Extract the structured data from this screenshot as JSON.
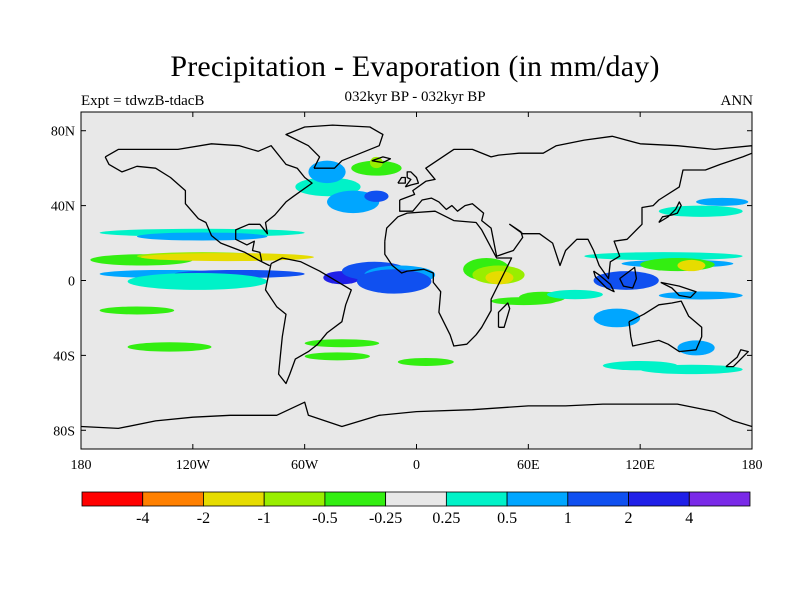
{
  "title": "Precipitation - Evaporation (in mm/day)",
  "subtitle": "032kyr BP - 032kyr BP",
  "left_label": "Expt = tdwzB-tdacB",
  "right_label": "ANN",
  "colors": {
    "ocean_background": "#e8e8e8",
    "coastline": "#000000",
    "negative_strong": "#ff0000",
    "neg_2": "#ff8000",
    "neg_1": "#e6dc00",
    "neg_05": "#99ee00",
    "neg_025": "#33ee11",
    "neutral": "#e8e8e8",
    "pos_025": "#00f2c8",
    "pos_05": "#00a6ff",
    "pos_1": "#1050f0",
    "pos_2": "#2020e8",
    "pos_4": "#7a2ae8"
  },
  "map": {
    "projection": "equirectangular",
    "lon_range": [
      -180,
      180
    ],
    "lat_range": [
      -90,
      90
    ],
    "lat_tick_labels": [
      "80N",
      "40N",
      "0",
      "40S",
      "80S"
    ],
    "lon_tick_labels": [
      "180",
      "120W",
      "60W",
      "0",
      "60E",
      "120E",
      "180"
    ]
  },
  "colorbar": {
    "swatch_colors": [
      "#ff0000",
      "#ff8000",
      "#e6dc00",
      "#99ee00",
      "#33ee11",
      "#e8e8e8",
      "#00f2c8",
      "#00a6ff",
      "#1050f0",
      "#2020e8",
      "#7a2ae8"
    ],
    "labels": [
      "-4",
      "-2",
      "-1",
      "-0.5",
      "-0.25",
      "0.25",
      "0.5",
      "1",
      "2",
      "4"
    ]
  }
}
